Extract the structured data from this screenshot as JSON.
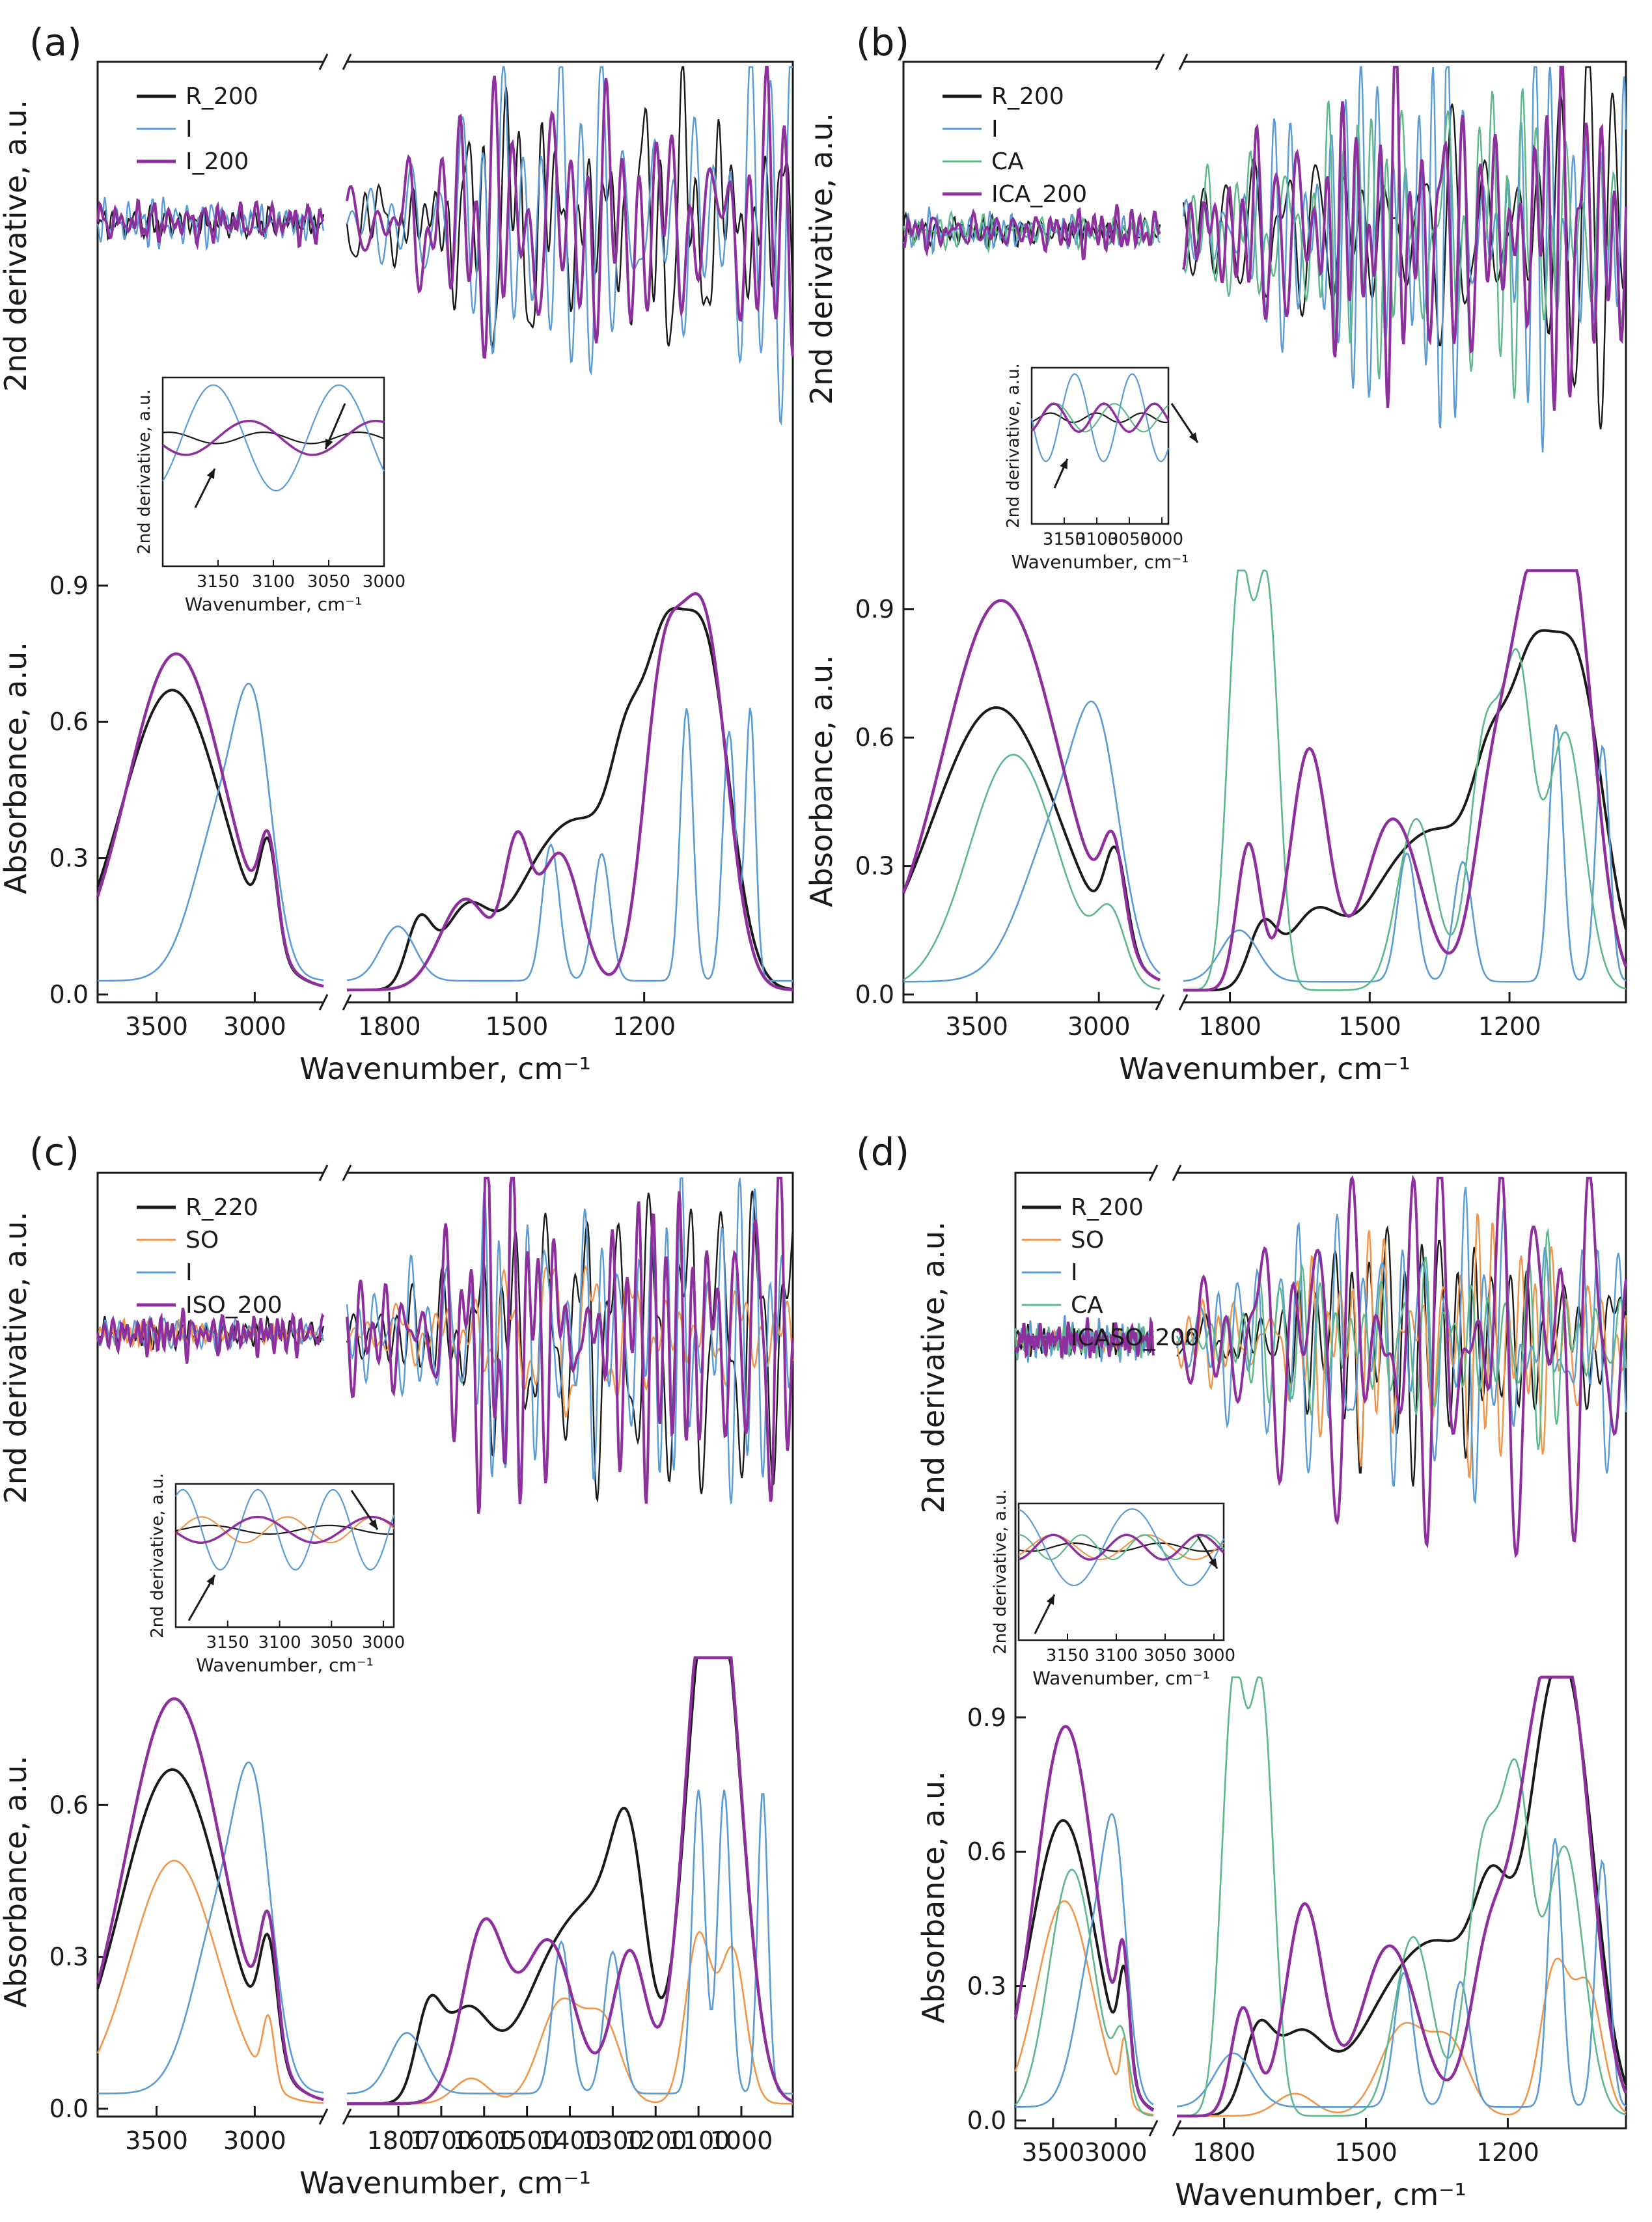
{
  "figure_type": "FTIR absorbance spectra with second-derivative spectra and insets",
  "colors": {
    "R": "#1a1a1a",
    "I": "#5b9bd5",
    "CA": "#5cb88a",
    "SO": "#f0954a",
    "composite": "#8e2f9e",
    "axis": "#1a1a1a"
  },
  "chart_data": [
    {
      "type": "line",
      "panel_label": "(a)",
      "legend": [
        "R_200",
        "I",
        "I_200"
      ],
      "series_keys": [
        "R",
        "I",
        "composite"
      ],
      "deriv_ylabel": "2nd derivative, a.u.",
      "abs_ylabel": "Absorbance, a.u.",
      "xlabel": "Wavenumber, cm⁻¹",
      "x_left": {
        "range": [
          3800,
          2650
        ],
        "ticks": [
          "3500",
          "3000"
        ]
      },
      "x_right": {
        "range": [
          1900,
          850
        ],
        "ticks": [
          "1800",
          "1500",
          "1200"
        ]
      },
      "abs_ylim": [
        0,
        1.0
      ],
      "abs_ticks": [
        "0.0",
        "0.3",
        "0.6",
        "0.9"
      ],
      "inset": {
        "ylabel": "2nd derivative, a.u.",
        "xlabel": "Wavenumber, cm⁻¹",
        "ticks": [
          "3150",
          "3100",
          "3050",
          "3000"
        ],
        "range": [
          3200,
          3000
        ]
      },
      "abs_peaks": {
        "R": [
          [
            3420,
            0.66,
            260
          ],
          [
            2930,
            0.22,
            45
          ],
          [
            1730,
            0.14,
            30
          ],
          [
            1620,
            0.17,
            55
          ],
          [
            1440,
            0.25,
            80
          ],
          [
            1320,
            0.26,
            70
          ],
          [
            1240,
            0.35,
            40
          ],
          [
            1160,
            0.55,
            45
          ],
          [
            1060,
            0.76,
            60
          ]
        ],
        "I": [
          [
            3150,
            0.38,
            150
          ],
          [
            3000,
            0.4,
            90
          ],
          [
            1780,
            0.12,
            40
          ],
          [
            1420,
            0.3,
            20
          ],
          [
            1300,
            0.28,
            20
          ],
          [
            1100,
            0.6,
            15
          ],
          [
            1000,
            0.55,
            15
          ],
          [
            950,
            0.6,
            12
          ]
        ],
        "composite": [
          [
            3400,
            0.74,
            250
          ],
          [
            2930,
            0.22,
            45
          ],
          [
            1620,
            0.2,
            60
          ],
          [
            1500,
            0.28,
            30
          ],
          [
            1400,
            0.3,
            50
          ],
          [
            1160,
            0.6,
            45
          ],
          [
            1060,
            0.8,
            55
          ]
        ]
      },
      "deriv_amplitude": {
        "R": 0.75,
        "I": 1.0,
        "composite": 0.85
      }
    },
    {
      "type": "line",
      "panel_label": "(b)",
      "legend": [
        "R_200",
        "I",
        "CA",
        "ICA_200"
      ],
      "series_keys": [
        "R",
        "I",
        "CA",
        "composite"
      ],
      "deriv_ylabel": "2nd derivative, a.u.",
      "abs_ylabel": "Absorbance, a.u.",
      "xlabel": "Wavenumber, cm⁻¹",
      "x_left": {
        "range": [
          3800,
          2750
        ],
        "ticks": [
          "3500",
          "3000"
        ]
      },
      "x_right": {
        "range": [
          1900,
          950
        ],
        "ticks": [
          "1800",
          "1500",
          "1200"
        ]
      },
      "abs_ylim": [
        0,
        1.0
      ],
      "abs_ticks": [
        "0.0",
        "0.3",
        "0.6",
        "0.9"
      ],
      "inset": {
        "ylabel": "2nd derivative, a.u.",
        "xlabel": "Wavenumber, cm⁻¹",
        "ticks": [
          "3150",
          "3100",
          "3050",
          "3000"
        ],
        "range": [
          3200,
          2990
        ]
      },
      "abs_peaks": {
        "R": [
          [
            3420,
            0.66,
            260
          ],
          [
            2930,
            0.22,
            45
          ],
          [
            1730,
            0.14,
            30
          ],
          [
            1620,
            0.17,
            55
          ],
          [
            1440,
            0.25,
            80
          ],
          [
            1320,
            0.26,
            70
          ],
          [
            1240,
            0.35,
            40
          ],
          [
            1160,
            0.55,
            45
          ],
          [
            1060,
            0.76,
            60
          ]
        ],
        "I": [
          [
            3150,
            0.38,
            150
          ],
          [
            3000,
            0.4,
            90
          ],
          [
            1780,
            0.12,
            40
          ],
          [
            1420,
            0.3,
            20
          ],
          [
            1300,
            0.28,
            20
          ],
          [
            1100,
            0.6,
            15
          ],
          [
            1000,
            0.55,
            15
          ]
        ],
        "CA": [
          [
            3350,
            0.55,
            180
          ],
          [
            2950,
            0.15,
            60
          ],
          [
            1780,
            0.95,
            25
          ],
          [
            1720,
            0.92,
            25
          ],
          [
            1400,
            0.4,
            40
          ],
          [
            1250,
            0.6,
            35
          ],
          [
            1180,
            0.68,
            30
          ],
          [
            1080,
            0.6,
            40
          ]
        ],
        "composite": [
          [
            3400,
            0.91,
            240
          ],
          [
            2940,
            0.22,
            45
          ],
          [
            1760,
            0.34,
            25
          ],
          [
            1630,
            0.56,
            40
          ],
          [
            1450,
            0.4,
            60
          ],
          [
            1240,
            0.4,
            40
          ],
          [
            1160,
            0.75,
            45
          ],
          [
            1070,
            0.98,
            50
          ]
        ]
      },
      "deriv_amplitude": {
        "R": 0.8,
        "I": 1.0,
        "CA": 0.9,
        "composite": 0.95
      }
    },
    {
      "type": "line",
      "panel_label": "(c)",
      "legend": [
        "R_220",
        "SO",
        "I",
        "ISO_200"
      ],
      "series_keys": [
        "R",
        "SO",
        "I",
        "composite"
      ],
      "deriv_ylabel": "2nd derivative, a.u.",
      "abs_ylabel": "Absorbance, a.u.",
      "xlabel": "Wavenumber, cm⁻¹",
      "x_left": {
        "range": [
          3800,
          2650
        ],
        "ticks": [
          "3500",
          "3000"
        ]
      },
      "x_right": {
        "range": [
          1920,
          880
        ],
        "ticks": [
          "1800",
          "1700",
          "1600",
          "1500",
          "1400",
          "1300",
          "1200",
          "1100",
          "1000"
        ]
      },
      "abs_ylim": [
        0,
        0.9
      ],
      "abs_ticks": [
        "0.0",
        "0.3",
        "0.6"
      ],
      "inset": {
        "ylabel": "2nd derivative, a.u.",
        "xlabel": "Wavenumber, cm⁻¹",
        "ticks": [
          "3150",
          "3100",
          "3050",
          "3000"
        ],
        "range": [
          3200,
          2990
        ]
      },
      "abs_peaks": {
        "R": [
          [
            3420,
            0.66,
            260
          ],
          [
            2930,
            0.22,
            45
          ],
          [
            1730,
            0.16,
            30
          ],
          [
            1640,
            0.18,
            55
          ],
          [
            1440,
            0.25,
            80
          ],
          [
            1320,
            0.28,
            70
          ],
          [
            1260,
            0.35,
            40
          ],
          [
            1100,
            0.55,
            45
          ],
          [
            1040,
            0.77,
            50
          ]
        ],
        "SO": [
          [
            3410,
            0.48,
            220
          ],
          [
            2930,
            0.13,
            30
          ],
          [
            1630,
            0.05,
            40
          ],
          [
            1420,
            0.2,
            50
          ],
          [
            1320,
            0.15,
            40
          ],
          [
            1100,
            0.33,
            30
          ],
          [
            1020,
            0.3,
            30
          ]
        ],
        "I": [
          [
            3150,
            0.38,
            150
          ],
          [
            3000,
            0.4,
            90
          ],
          [
            1780,
            0.12,
            40
          ],
          [
            1420,
            0.3,
            20
          ],
          [
            1300,
            0.28,
            20
          ],
          [
            1100,
            0.6,
            15
          ],
          [
            1040,
            0.6,
            15
          ],
          [
            950,
            0.6,
            12
          ]
        ],
        "composite": [
          [
            3410,
            0.8,
            250
          ],
          [
            2930,
            0.25,
            45
          ],
          [
            1600,
            0.35,
            50
          ],
          [
            1450,
            0.32,
            60
          ],
          [
            1260,
            0.3,
            40
          ],
          [
            1100,
            0.6,
            45
          ],
          [
            1040,
            0.78,
            50
          ]
        ]
      },
      "deriv_amplitude": {
        "R": 0.8,
        "SO": 0.6,
        "I": 1.0,
        "composite": 0.95
      }
    },
    {
      "type": "line",
      "panel_label": "(d)",
      "legend": [
        "R_200",
        "SO",
        "I",
        "CA",
        "ICASO_200"
      ],
      "series_keys": [
        "R",
        "SO",
        "I",
        "CA",
        "composite"
      ],
      "deriv_ylabel": "2nd derivative, a.u.",
      "abs_ylabel": "Absorbance, a.u.",
      "xlabel": "Wavenumber, cm⁻¹",
      "x_left": {
        "range": [
          3800,
          2700
        ],
        "ticks": [
          "3500",
          "3000"
        ]
      },
      "x_right": {
        "range": [
          1900,
          950
        ],
        "ticks": [
          "1800",
          "1500",
          "1200"
        ]
      },
      "abs_ylim": [
        0,
        1.0
      ],
      "abs_ticks": [
        "0.0",
        "0.3",
        "0.6",
        "0.9"
      ],
      "inset": {
        "ylabel": "2nd derivative, a.u.",
        "xlabel": "Wavenumber, cm⁻¹",
        "ticks": [
          "3150",
          "3100",
          "3050",
          "3000"
        ],
        "range": [
          3200,
          2990
        ]
      },
      "abs_peaks": {
        "R": [
          [
            3420,
            0.66,
            260
          ],
          [
            2930,
            0.22,
            45
          ],
          [
            1730,
            0.16,
            30
          ],
          [
            1640,
            0.18,
            55
          ],
          [
            1440,
            0.25,
            80
          ],
          [
            1320,
            0.28,
            70
          ],
          [
            1230,
            0.38,
            40
          ],
          [
            1130,
            0.55,
            45
          ],
          [
            1060,
            0.78,
            50
          ]
        ],
        "SO": [
          [
            3410,
            0.48,
            220
          ],
          [
            2930,
            0.13,
            30
          ],
          [
            1650,
            0.05,
            40
          ],
          [
            1420,
            0.2,
            50
          ],
          [
            1320,
            0.15,
            40
          ],
          [
            1100,
            0.33,
            30
          ],
          [
            1030,
            0.28,
            30
          ]
        ],
        "I": [
          [
            3150,
            0.38,
            150
          ],
          [
            3000,
            0.4,
            90
          ],
          [
            1780,
            0.12,
            40
          ],
          [
            1420,
            0.3,
            20
          ],
          [
            1300,
            0.28,
            20
          ],
          [
            1100,
            0.6,
            15
          ],
          [
            1000,
            0.55,
            15
          ]
        ],
        "CA": [
          [
            3350,
            0.55,
            180
          ],
          [
            2950,
            0.15,
            60
          ],
          [
            1780,
            0.95,
            25
          ],
          [
            1720,
            0.92,
            25
          ],
          [
            1400,
            0.4,
            40
          ],
          [
            1250,
            0.6,
            35
          ],
          [
            1180,
            0.68,
            30
          ],
          [
            1080,
            0.6,
            40
          ]
        ],
        "composite": [
          [
            3400,
            0.87,
            240
          ],
          [
            2940,
            0.25,
            45
          ],
          [
            1760,
            0.24,
            25
          ],
          [
            1630,
            0.47,
            40
          ],
          [
            1450,
            0.38,
            60
          ],
          [
            1240,
            0.36,
            40
          ],
          [
            1150,
            0.6,
            45
          ],
          [
            1070,
            0.9,
            50
          ]
        ]
      },
      "deriv_amplitude": {
        "R": 0.8,
        "SO": 0.6,
        "I": 1.0,
        "CA": 0.9,
        "composite": 0.95
      }
    }
  ]
}
